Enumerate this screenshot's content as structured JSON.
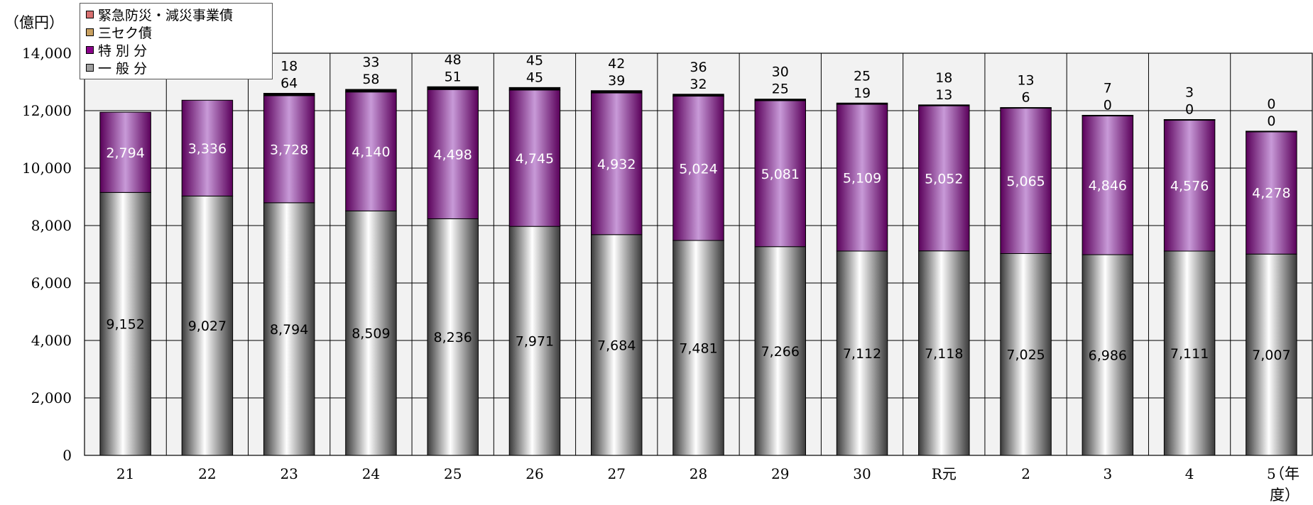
{
  "unit_label": "（億円）",
  "x_unit_label": "（年度）",
  "colors": {
    "general": "#c8c8c8",
    "special": "#800080",
    "third_sector": "#a08050",
    "disaster": "#c06060",
    "plot_bg": "#f2f2f2"
  },
  "legend": [
    {
      "label": "緊急防災・減災事業債",
      "color": "#d87070"
    },
    {
      "label": "三セク債",
      "color": "#c8a060"
    },
    {
      "label": "特 別 分",
      "color": "#8a008a"
    },
    {
      "label": "一 般 分",
      "color": "#a0a0a0"
    }
  ],
  "chart_data": {
    "type": "bar",
    "stacked": true,
    "categories": [
      "21",
      "22",
      "23",
      "24",
      "25",
      "26",
      "27",
      "28",
      "29",
      "30",
      "R元",
      "2",
      "3",
      "4",
      "5"
    ],
    "series": [
      {
        "name": "一 般 分",
        "values": [
          9152,
          9027,
          8794,
          8509,
          8236,
          7971,
          7684,
          7481,
          7266,
          7112,
          7118,
          7025,
          6986,
          7111,
          7007
        ]
      },
      {
        "name": "特 別 分",
        "values": [
          2794,
          3336,
          3728,
          4140,
          4498,
          4745,
          4932,
          5024,
          5081,
          5109,
          5052,
          5065,
          4846,
          4576,
          4278
        ]
      },
      {
        "name": "三セク債",
        "values": [
          null,
          null,
          64,
          58,
          51,
          45,
          39,
          32,
          25,
          19,
          13,
          6,
          0,
          0,
          0
        ]
      },
      {
        "name": "緊急防災・減災事業債",
        "values": [
          null,
          null,
          18,
          33,
          48,
          45,
          42,
          36,
          30,
          25,
          18,
          13,
          7,
          3,
          0
        ]
      }
    ],
    "yticks": [
      "0",
      "2,000",
      "4,000",
      "6,000",
      "8,000",
      "10,000",
      "12,000",
      "14,000"
    ],
    "ylim": [
      0,
      14000
    ],
    "legend_position": "top-left",
    "grid": true
  }
}
